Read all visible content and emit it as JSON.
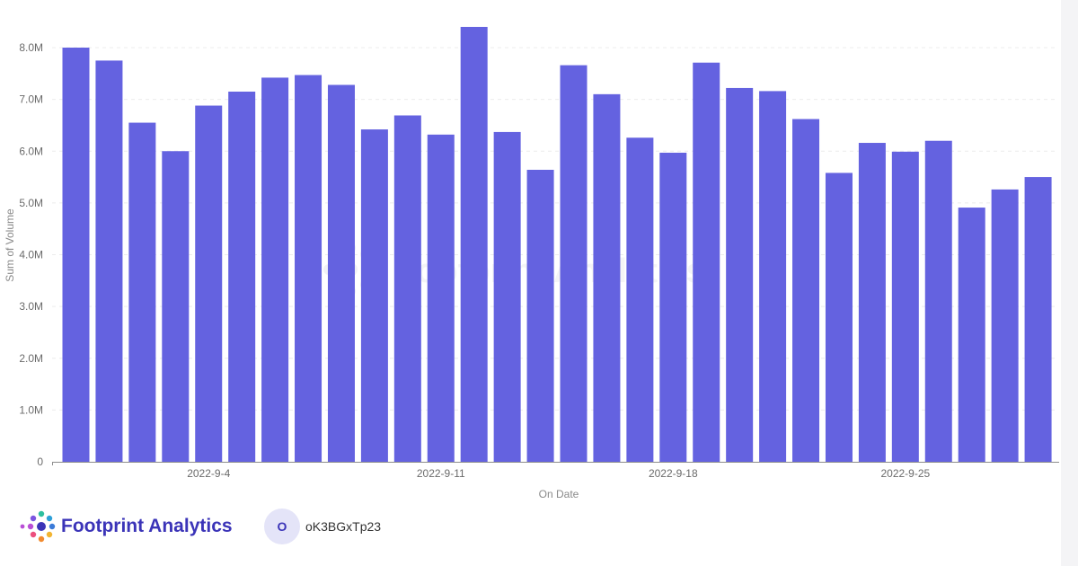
{
  "chart_data": {
    "type": "bar",
    "xlabel": "On Date",
    "ylabel": "Sum of Volume",
    "ylim": [
      0,
      8400000
    ],
    "yticks": [
      {
        "value": 0,
        "label": "0"
      },
      {
        "value": 1000000,
        "label": "1.0M"
      },
      {
        "value": 2000000,
        "label": "2.0M"
      },
      {
        "value": 3000000,
        "label": "3.0M"
      },
      {
        "value": 4000000,
        "label": "4.0M"
      },
      {
        "value": 5000000,
        "label": "5.0M"
      },
      {
        "value": 6000000,
        "label": "6.0M"
      },
      {
        "value": 7000000,
        "label": "7.0M"
      },
      {
        "value": 8000000,
        "label": "8.0M"
      }
    ],
    "xticks": [
      "2022-9-4",
      "2022-9-11",
      "2022-9-18",
      "2022-9-25"
    ],
    "categories": [
      "2022-8-31",
      "2022-9-1",
      "2022-9-2",
      "2022-9-3",
      "2022-9-4",
      "2022-9-5",
      "2022-9-6",
      "2022-9-7",
      "2022-9-8",
      "2022-9-9",
      "2022-9-10",
      "2022-9-11",
      "2022-9-12",
      "2022-9-13",
      "2022-9-14",
      "2022-9-15",
      "2022-9-16",
      "2022-9-17",
      "2022-9-18",
      "2022-9-19",
      "2022-9-20",
      "2022-9-21",
      "2022-9-22",
      "2022-9-23",
      "2022-9-24",
      "2022-9-25",
      "2022-9-26",
      "2022-9-27",
      "2022-9-28",
      "2022-9-29"
    ],
    "values": [
      8000000,
      7750000,
      6550000,
      6000000,
      6880000,
      7150000,
      7420000,
      7470000,
      7280000,
      6420000,
      6690000,
      6320000,
      8400000,
      6370000,
      5640000,
      7660000,
      7100000,
      6260000,
      5970000,
      7710000,
      7220000,
      7160000,
      6620000,
      5580000,
      6160000,
      5990000,
      6200000,
      4910000,
      5260000,
      5500000
    ],
    "grid": true,
    "bar_color": "#6462e0"
  },
  "watermark": {
    "text": "Footprint Analytics"
  },
  "footer": {
    "brand_name": "Footprint Analytics",
    "avatar_letter": "O",
    "username": "oK3BGxTp23"
  }
}
